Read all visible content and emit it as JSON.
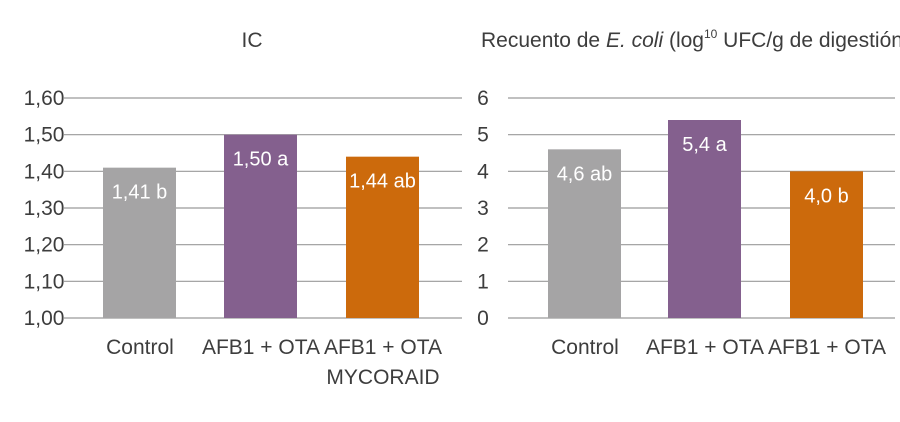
{
  "chart_data": [
    {
      "type": "bar",
      "title": "IC",
      "categories": [
        "Control",
        "AFB1 + OTA",
        "AFB1 + OTA MYCORAID"
      ],
      "category_lines": [
        [
          "Control"
        ],
        [
          "AFB1 + OTA"
        ],
        [
          "AFB1 + OTA",
          "MYCORAID"
        ]
      ],
      "values": [
        1.41,
        1.5,
        1.44
      ],
      "data_labels": [
        "1,41 b",
        "1,50 a",
        "1,44 ab"
      ],
      "colors": [
        "#a5a4a5",
        "#84608e",
        "#cc6a0c"
      ],
      "ylim": [
        1.0,
        1.6
      ],
      "yticks": [
        1.0,
        1.1,
        1.2,
        1.3,
        1.4,
        1.5,
        1.6
      ],
      "ytick_labels": [
        "1,00",
        "1,10",
        "1,20",
        "1,30",
        "1,40",
        "1,50",
        "1,60"
      ],
      "grid": true
    },
    {
      "type": "bar",
      "title_parts": {
        "before": "Recuento de ",
        "italic": "E. coli",
        "mid": " (log",
        "sup": "10",
        "after": " UFC/g de digestión cecal)"
      },
      "categories": [
        "Control",
        "AFB1 + OTA",
        "AFB1 + OTA"
      ],
      "category_lines": [
        [
          "Control"
        ],
        [
          "AFB1 + OTA"
        ],
        [
          "AFB1 + OTA"
        ]
      ],
      "values": [
        4.6,
        5.4,
        4.0
      ],
      "data_labels": [
        "4,6 ab",
        "5,4 a",
        "4,0 b"
      ],
      "colors": [
        "#a5a4a5",
        "#84608e",
        "#cc6a0c"
      ],
      "ylim": [
        0,
        6
      ],
      "yticks": [
        0,
        1,
        2,
        3,
        4,
        5,
        6
      ],
      "ytick_labels": [
        "0",
        "1",
        "2",
        "3",
        "4",
        "5",
        "6"
      ],
      "grid": true
    }
  ]
}
